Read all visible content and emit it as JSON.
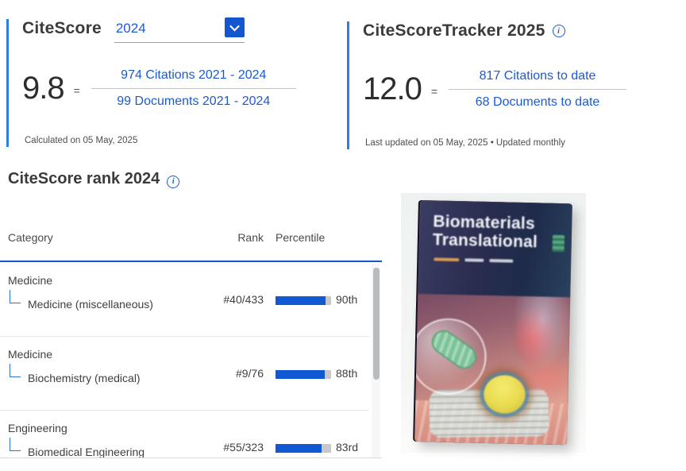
{
  "colors": {
    "accent_blue": "#2e7de0",
    "link_blue": "#1b5bd1",
    "dropdown_button_blue": "#1456cf",
    "table_rule_blue": "#1456cf",
    "percentile_bar_fill": "#1159d3",
    "percentile_bar_track": "#c8c8c8"
  },
  "icons": {
    "chevron_down": "⌄",
    "info_glyph": "i"
  },
  "citescore": {
    "title": "CiteScore",
    "year_selected": "2024",
    "value": "9.8",
    "equals": "=",
    "numerator": "974 Citations 2021 - 2024",
    "denominator": "99 Documents 2021 - 2024",
    "footnote": "Calculated on 05 May, 2025"
  },
  "tracker": {
    "title": "CiteScoreTracker 2025",
    "value": "12.0",
    "equals": "=",
    "numerator": "817 Citations to date",
    "denominator": "68 Documents to date",
    "footnote": "Last updated on 05 May, 2025 • Updated monthly"
  },
  "rank": {
    "title": "CiteScore rank 2024",
    "columns": {
      "category": "Category",
      "rank": "Rank",
      "percentile": "Percentile"
    },
    "rows": [
      {
        "parent": "Medicine",
        "subcategory": "Medicine (miscellaneous)",
        "rank": "#40/433",
        "percentile": 90,
        "percentile_label": "90th"
      },
      {
        "parent": "Medicine",
        "subcategory": "Biochemistry (medical)",
        "rank": "#9/76",
        "percentile": 88,
        "percentile_label": "88th"
      },
      {
        "parent": "Engineering",
        "subcategory": "Biomedical Engineering",
        "rank": "#55/323",
        "percentile": 83,
        "percentile_label": "83rd"
      }
    ]
  },
  "cover": {
    "title_line1": "Biomaterials",
    "title_line2": "Translational"
  }
}
